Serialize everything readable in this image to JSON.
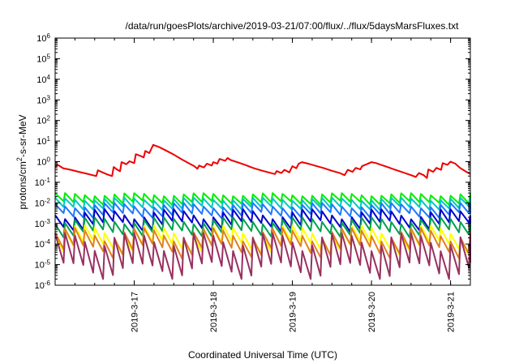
{
  "chart_data": {
    "type": "line",
    "title": "/data/run/goesPlots/archive/2019-03-21/07:00/flux/../flux/5daysMarsFluxes.txt",
    "xlabel": "Coordinated Universal Time (UTC)",
    "ylabel_parts": {
      "base": "protons/cm",
      "sup": "2",
      "rest": "-s-sr-MeV"
    },
    "yscale": "log",
    "ylim": [
      1e-06,
      1000000.0
    ],
    "xlim": [
      0.0,
      5.25
    ],
    "y_ticks": [
      {
        "exp": "-6",
        "value": 1e-06
      },
      {
        "exp": "-5",
        "value": 1e-05
      },
      {
        "exp": "-4",
        "value": 0.0001
      },
      {
        "exp": "-3",
        "value": 0.001
      },
      {
        "exp": "-2",
        "value": 0.01
      },
      {
        "exp": "-1",
        "value": 0.1
      },
      {
        "exp": "0",
        "value": 1
      },
      {
        "exp": "1",
        "value": 10
      },
      {
        "exp": "2",
        "value": 100
      },
      {
        "exp": "3",
        "value": 1000
      },
      {
        "exp": "4",
        "value": 10000
      },
      {
        "exp": "5",
        "value": 100000
      },
      {
        "exp": "6",
        "value": 1000000
      }
    ],
    "y_tick_base": "10",
    "x_ticks": [
      {
        "label": "2019-3-17",
        "value": 1.0
      },
      {
        "label": "2019-3-18",
        "value": 2.0
      },
      {
        "label": "2019-3-19",
        "value": 3.0
      },
      {
        "label": "2019-3-20",
        "value": 4.0
      },
      {
        "label": "2019-3-21",
        "value": 5.0
      }
    ],
    "grid": false,
    "series": [
      {
        "color": "#ee0000",
        "values": [
          [
            0.0,
            0.55
          ],
          [
            0.03,
            0.7
          ],
          [
            0.06,
            0.6
          ],
          [
            0.1,
            0.48
          ],
          [
            0.2,
            0.4
          ],
          [
            0.3,
            0.32
          ],
          [
            0.4,
            0.26
          ],
          [
            0.52,
            0.2
          ],
          [
            0.54,
            0.38
          ],
          [
            0.6,
            0.3
          ],
          [
            0.66,
            0.24
          ],
          [
            0.72,
            0.2
          ],
          [
            0.74,
            0.55
          ],
          [
            0.78,
            0.42
          ],
          [
            0.82,
            0.34
          ],
          [
            0.84,
            0.95
          ],
          [
            0.9,
            0.75
          ],
          [
            0.94,
            1.05
          ],
          [
            1.0,
            0.85
          ],
          [
            1.02,
            2.3
          ],
          [
            1.08,
            1.9
          ],
          [
            1.12,
            1.6
          ],
          [
            1.14,
            3.3
          ],
          [
            1.19,
            2.6
          ],
          [
            1.24,
            6.5
          ],
          [
            1.32,
            5.0
          ],
          [
            1.4,
            3.5
          ],
          [
            1.5,
            2.2
          ],
          [
            1.6,
            1.3
          ],
          [
            1.7,
            0.8
          ],
          [
            1.76,
            0.6
          ],
          [
            1.8,
            0.45
          ],
          [
            1.82,
            0.65
          ],
          [
            1.88,
            0.52
          ],
          [
            1.92,
            0.8
          ],
          [
            1.98,
            0.65
          ],
          [
            2.0,
            0.95
          ],
          [
            2.05,
            0.8
          ],
          [
            2.08,
            1.35
          ],
          [
            2.15,
            1.1
          ],
          [
            2.18,
            1.5
          ],
          [
            2.22,
            1.2
          ],
          [
            2.3,
            0.95
          ],
          [
            2.4,
            0.7
          ],
          [
            2.5,
            0.5
          ],
          [
            2.6,
            0.38
          ],
          [
            2.7,
            0.3
          ],
          [
            2.78,
            0.25
          ],
          [
            2.8,
            0.35
          ],
          [
            2.86,
            0.28
          ],
          [
            2.9,
            0.4
          ],
          [
            2.96,
            0.3
          ],
          [
            3.0,
            0.6
          ],
          [
            3.05,
            0.48
          ],
          [
            3.08,
            0.8
          ],
          [
            3.12,
            0.95
          ],
          [
            3.2,
            0.8
          ],
          [
            3.3,
            0.62
          ],
          [
            3.4,
            0.48
          ],
          [
            3.5,
            0.36
          ],
          [
            3.6,
            0.28
          ],
          [
            3.66,
            0.22
          ],
          [
            3.7,
            0.4
          ],
          [
            3.76,
            0.32
          ],
          [
            3.8,
            0.5
          ],
          [
            3.86,
            0.42
          ],
          [
            3.88,
            0.6
          ],
          [
            3.94,
            0.75
          ],
          [
            4.0,
            0.95
          ],
          [
            4.06,
            0.85
          ],
          [
            4.12,
            0.7
          ],
          [
            4.2,
            0.55
          ],
          [
            4.3,
            0.4
          ],
          [
            4.4,
            0.3
          ],
          [
            4.5,
            0.22
          ],
          [
            4.56,
            0.18
          ],
          [
            4.6,
            0.28
          ],
          [
            4.66,
            0.22
          ],
          [
            4.7,
            0.16
          ],
          [
            4.72,
            0.42
          ],
          [
            4.78,
            0.32
          ],
          [
            4.82,
            0.5
          ],
          [
            4.88,
            0.4
          ],
          [
            4.9,
            0.85
          ],
          [
            4.96,
            0.7
          ],
          [
            5.0,
            1.0
          ],
          [
            5.06,
            0.8
          ],
          [
            5.12,
            0.5
          ],
          [
            5.2,
            0.32
          ],
          [
            5.25,
            0.25
          ]
        ]
      },
      {
        "color": "#00ee00",
        "base": [
          0.02,
          0.03
        ],
        "drop": 0.45
      },
      {
        "color": "#00c8c0",
        "base": [
          0.012,
          0.018
        ],
        "drop": 0.42
      },
      {
        "color": "#1e78ff",
        "base": [
          0.005,
          0.01
        ],
        "drop": 0.38
      },
      {
        "color": "#0000cc",
        "base": [
          0.0012,
          0.005
        ],
        "drop": 0.3
      },
      {
        "color": "#00a050",
        "base": [
          0.0008,
          0.002
        ],
        "drop": 0.28
      },
      {
        "color": "#ffff00",
        "base": [
          0.0001,
          0.0008
        ],
        "drop": 0.2
      },
      {
        "color": "#e08020",
        "base": [
          8e-05,
          0.0006
        ],
        "drop": 0.18
      },
      {
        "color": "#983060",
        "base": [
          1e-05,
          0.00035
        ],
        "drop": 0.04
      }
    ]
  }
}
